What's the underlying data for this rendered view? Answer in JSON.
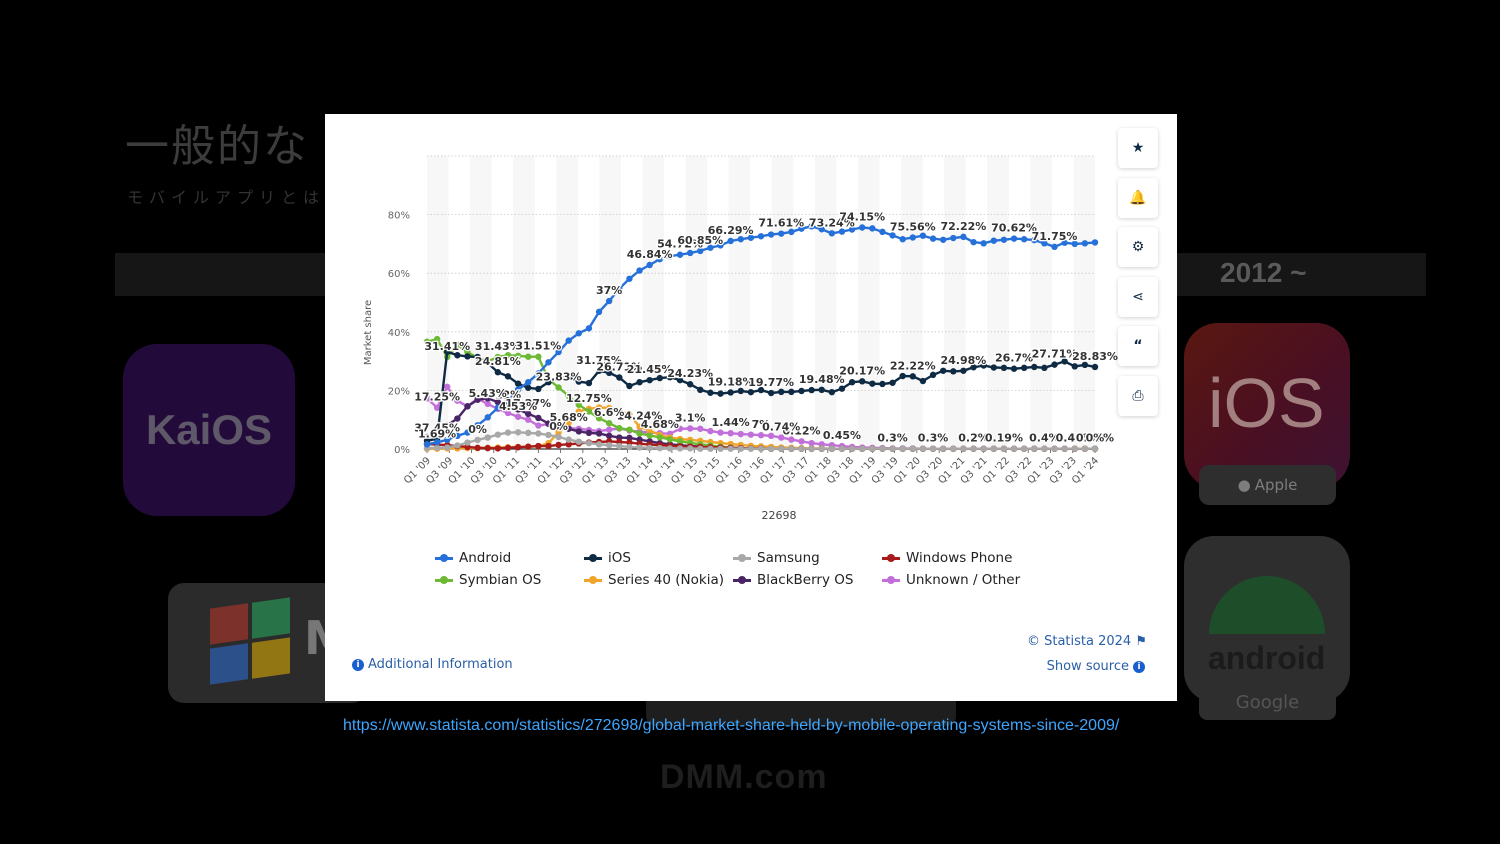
{
  "background": {
    "title": "一般的な",
    "subtitle": "モバイルアプリとは何",
    "year_label": "2012 ~",
    "kaios_logo": "KaiOS",
    "windows_text": "M",
    "ios_logo": "iOS",
    "apple_label": "Apple",
    "android_logo": "android",
    "google_label": "Google",
    "watermark": "DMM.com"
  },
  "source_url": "https://www.statista.com/statistics/272698/global-market-share-held-by-mobile-operating-systems-since-2009/",
  "modal": {
    "tools": [
      "star-icon",
      "bell-icon",
      "gear-icon",
      "share-icon",
      "quote-icon",
      "print-icon"
    ],
    "copyright": "© Statista 2024",
    "show_source": "Show source",
    "additional_info": "Additional Information"
  },
  "chart_data": {
    "type": "line",
    "xlabel": "22698",
    "ylabel": "Market share",
    "ylim": [
      0,
      100
    ],
    "yticks": [
      "0%",
      "20%",
      "40%",
      "60%",
      "80%"
    ],
    "x_tick_labels": [
      "Q1 '09",
      "Q3 '09",
      "Q1 '10",
      "Q3 '10",
      "Q1 '11",
      "Q3 '11",
      "Q1 '12",
      "Q3 '12",
      "Q1 '13",
      "Q3 '13",
      "Q1 '14",
      "Q3 '14",
      "Q1 '15",
      "Q3 '15",
      "Q1 '16",
      "Q3 '16",
      "Q1 '17",
      "Q3 '17",
      "Q1 '18",
      "Q3 '18",
      "Q1 '19",
      "Q3 '19",
      "Q1 '20",
      "Q3 '20",
      "Q1 '21",
      "Q3 '21",
      "Q1 '22",
      "Q3 '22",
      "Q1 '23",
      "Q3 '23",
      "Q1 '24"
    ],
    "legend_position": "bottom",
    "series": [
      {
        "name": "Android",
        "color": "#2670d9",
        "values": [
          1.6,
          2.3,
          3.1,
          4.5,
          5.6,
          8.1,
          10.8,
          14.1,
          16.5,
          20.3,
          22.8,
          25.8,
          29.6,
          33.1,
          37.0,
          39.5,
          41.2,
          46.8,
          50.5,
          54.7,
          58.1,
          60.9,
          62.8,
          64.8,
          65.8,
          66.3,
          66.9,
          67.6,
          68.7,
          69.5,
          71.0,
          71.6,
          72.1,
          72.6,
          73.2,
          73.5,
          74.1,
          75.2,
          76.0,
          75.0,
          73.6,
          74.2,
          74.9,
          75.6,
          75.3,
          74.1,
          72.9,
          71.6,
          72.2,
          72.8,
          71.8,
          71.4,
          72.0,
          72.4,
          70.6,
          70.2,
          71.1,
          71.4,
          71.8,
          71.6,
          71.3,
          70.2,
          69.0,
          70.4,
          70.0,
          70.2,
          70.5
        ]
      },
      {
        "name": "iOS",
        "color": "#0f2a43",
        "values": [
          2.8,
          3.5,
          33.2,
          32.0,
          31.6,
          31.4,
          29.4,
          26.2,
          24.8,
          22.3,
          20.9,
          20.5,
          22.8,
          24.1,
          24.5,
          23.0,
          22.5,
          26.7,
          26.0,
          24.4,
          21.5,
          22.8,
          23.5,
          24.2,
          24.5,
          23.5,
          22.1,
          20.2,
          19.2,
          18.9,
          19.3,
          19.8,
          19.4,
          20.1,
          19.1,
          19.5,
          19.5,
          19.8,
          20.1,
          20.2,
          19.4,
          20.6,
          22.8,
          23.1,
          22.3,
          22.2,
          22.6,
          24.9,
          24.8,
          23.2,
          25.3,
          26.7,
          26.5,
          26.7,
          27.9,
          28.5,
          27.8,
          27.7,
          27.4,
          27.7,
          28.0,
          27.7,
          28.8,
          29.9,
          28.2,
          28.7,
          28.0
        ]
      },
      {
        "name": "Samsung",
        "color": "#a8a8a8",
        "values": [
          0.3,
          0.4,
          0.5,
          1.2,
          2.2,
          3.1,
          3.9,
          4.9,
          5.6,
          5.7,
          5.5,
          5.3,
          4.8,
          4.1,
          3.2,
          2.5,
          2.0,
          1.6,
          1.3,
          1.0,
          0.7,
          0.5,
          0.4,
          0.3,
          0.2,
          0.2,
          0.2,
          0.1,
          0.1,
          0.1,
          0.1,
          0.1,
          0.1,
          0.1,
          0.1,
          0.1,
          0.1,
          0.1,
          0.1,
          0.1,
          0.1,
          0.1,
          0.1,
          0.1,
          0.1,
          0.1,
          0.1,
          0.1,
          0.1,
          0.1,
          0.1,
          0.1,
          0.1,
          0.1,
          0.1,
          0.1,
          0.1,
          0.1,
          0.1,
          0.1,
          0.1,
          0.1,
          0.1,
          0.1,
          0.1,
          0.1,
          0.1
        ]
      },
      {
        "name": "Windows Phone",
        "color": "#a81b1b",
        "values": [
          1.7,
          1.5,
          1.3,
          1.0,
          0.7,
          0.4,
          0.3,
          0.2,
          0.4,
          0.6,
          0.8,
          1.0,
          1.0,
          1.4,
          1.6,
          1.9,
          2.2,
          2.4,
          2.6,
          2.4,
          2.2,
          1.8,
          1.5,
          1.3,
          1.1,
          0.9,
          0.8,
          0.7,
          0.6,
          0.5,
          0.4,
          0.3,
          0.2,
          0.2,
          0.1,
          0.1,
          0.1,
          0.1,
          0.1,
          0.1,
          0.1,
          0.1,
          0.1,
          0.1,
          0.1,
          0.1,
          0.1,
          0.1,
          0.1,
          0.1,
          0.1,
          0.1,
          0.1,
          0.1,
          0.1,
          0.1,
          0.1,
          0.1,
          0.1,
          0.1,
          0.1,
          0.1,
          0.1,
          0.1,
          0.1,
          0.1,
          0.1
        ]
      },
      {
        "name": "Symbian OS",
        "color": "#6cb933",
        "values": [
          36.6,
          37.5,
          31.4,
          35.5,
          33.0,
          31.2,
          29.9,
          31.4,
          32.0,
          31.8,
          31.5,
          31.5,
          23.8,
          21.0,
          18.1,
          15.1,
          12.8,
          10.5,
          8.8,
          7.1,
          6.6,
          5.3,
          4.6,
          4.0,
          3.3,
          2.6,
          2.1,
          1.6,
          1.2,
          0.8,
          0.5,
          0.3,
          0.2,
          0.1,
          0.1,
          0.1,
          0.1,
          0.1,
          0.1,
          0.1,
          0.1,
          0.1,
          0.1,
          0.1,
          0.1,
          0.1,
          0.1,
          0.1,
          0.1,
          0.1,
          0.1,
          0.1,
          0.1,
          0.1,
          0.1,
          0.1,
          0.1,
          0.1,
          0.1,
          0.1,
          0.1,
          0.1,
          0.1,
          0.1,
          0.1,
          0.1,
          0.1
        ]
      },
      {
        "name": "Series 40 (Nokia)",
        "color": "#f0a42c",
        "values": [
          0.1,
          0.1,
          0.2,
          0.2,
          0.3,
          0.3,
          0.4,
          0.5,
          0.6,
          0.7,
          0.8,
          1.0,
          2.0,
          5.7,
          9.0,
          12.8,
          13.7,
          14.2,
          14.0,
          13.0,
          11.8,
          7.6,
          6.2,
          4.8,
          3.9,
          3.4,
          3.1,
          2.8,
          2.4,
          2.0,
          1.7,
          1.4,
          1.1,
          0.9,
          0.7,
          0.5,
          0.4,
          0.3,
          0.2,
          0.2,
          0.1,
          0.1,
          0.1,
          0.1,
          0.1,
          0.1,
          0.1,
          0.1,
          0.1,
          0.1,
          0.1,
          0.1,
          0.1,
          0.1,
          0.1,
          0.1,
          0.1,
          0.1,
          0.1,
          0.1,
          0.1,
          0.1,
          0.1,
          0.1,
          0.1,
          0.1,
          0.1
        ]
      },
      {
        "name": "BlackBerry OS",
        "color": "#4a2566",
        "values": [
          4.1,
          5.5,
          8.1,
          10.4,
          14.6,
          16.8,
          17.3,
          16.0,
          14.8,
          13.5,
          12.0,
          10.6,
          8.7,
          7.8,
          6.9,
          6.0,
          5.5,
          5.3,
          4.5,
          3.9,
          3.8,
          3.2,
          2.6,
          2.0,
          1.6,
          1.3,
          1.0,
          0.9,
          0.7,
          0.5,
          0.4,
          0.3,
          0.2,
          0.2,
          0.1,
          0.1,
          0.1,
          0.1,
          0.1,
          0.1,
          0.1,
          0.1,
          0.1,
          0.1,
          0.1,
          0.1,
          0.1,
          0.1,
          0.1,
          0.1,
          0.1,
          0.1,
          0.1,
          0.1,
          0.1,
          0.1,
          0.1,
          0.1,
          0.1,
          0.1,
          0.1,
          0.1,
          0.1,
          0.1,
          0.1,
          0.1,
          0.1
        ]
      },
      {
        "name": "Unknown / Other",
        "color": "#c26fd9",
        "values": [
          17.3,
          14.1,
          21.2,
          16.5,
          14.5,
          17.2,
          15.4,
          13.7,
          12.3,
          11.0,
          10.0,
          8.0,
          8.5,
          7.8,
          7.1,
          6.9,
          6.5,
          6.1,
          6.6,
          7.0,
          6.3,
          5.9,
          5.6,
          5.4,
          5.2,
          6.9,
          7.0,
          6.9,
          6.1,
          5.6,
          5.4,
          5.1,
          4.9,
          4.7,
          4.5,
          3.9,
          3.2,
          2.6,
          2.0,
          1.6,
          1.3,
          1.0,
          0.7,
          0.5,
          0.4,
          0.3,
          0.2,
          0.2,
          0.2,
          0.1,
          0.1,
          0.1,
          0.1,
          0.1,
          0.1,
          0.1,
          0.1,
          0.1,
          0.1,
          0.1,
          0.1,
          0.1,
          0.1,
          0.1,
          0.1,
          0.1,
          0.1
        ]
      }
    ],
    "annotations": [
      {
        "text": "37.45%",
        "series": 1,
        "i": 1
      },
      {
        "text": "31.41%",
        "series": 4,
        "i": 2
      },
      {
        "text": "31.43%",
        "series": 4,
        "i": 7
      },
      {
        "text": "31.51%",
        "series": 4,
        "i": 11
      },
      {
        "text": "31.75%",
        "series": 1,
        "i": 17
      },
      {
        "text": "37%",
        "series": 0,
        "i": 18
      },
      {
        "text": "46.84%",
        "series": 0,
        "i": 22
      },
      {
        "text": "54.72%",
        "series": 0,
        "i": 25
      },
      {
        "text": "60.85%",
        "series": 0,
        "i": 27
      },
      {
        "text": "66.29%",
        "series": 0,
        "i": 30
      },
      {
        "text": "71.61%",
        "series": 0,
        "i": 35
      },
      {
        "text": "73.24%",
        "series": 0,
        "i": 40
      },
      {
        "text": "74.15%",
        "series": 0,
        "i": 43
      },
      {
        "text": "75.56%",
        "series": 0,
        "i": 48
      },
      {
        "text": "72.22%",
        "series": 0,
        "i": 53
      },
      {
        "text": "70.62%",
        "series": 0,
        "i": 58
      },
      {
        "text": "71.75%",
        "series": 0,
        "i": 62
      },
      {
        "text": "24.81%",
        "series": 1,
        "i": 7
      },
      {
        "text": "23.83%",
        "series": 4,
        "i": 13
      },
      {
        "text": "26.71%",
        "series": 1,
        "i": 19
      },
      {
        "text": "21.45%",
        "series": 1,
        "i": 22
      },
      {
        "text": "24.23%",
        "series": 1,
        "i": 26
      },
      {
        "text": "19.18%",
        "series": 1,
        "i": 30
      },
      {
        "text": "19.77%",
        "series": 1,
        "i": 34
      },
      {
        "text": "19.48%",
        "series": 1,
        "i": 39
      },
      {
        "text": "20.17%",
        "series": 1,
        "i": 43
      },
      {
        "text": "22.22%",
        "series": 1,
        "i": 48
      },
      {
        "text": "24.98%",
        "series": 1,
        "i": 53
      },
      {
        "text": "26.7%",
        "series": 1,
        "i": 58
      },
      {
        "text": "27.71%",
        "series": 1,
        "i": 62
      },
      {
        "text": "28.83%",
        "series": 1,
        "i": 66
      },
      {
        "text": "17.25%",
        "series": 7,
        "i": 1
      },
      {
        "text": "12%",
        "series": 6,
        "i": 8
      },
      {
        "text": "17.27%",
        "series": 6,
        "i": 10
      },
      {
        "text": "12.75%",
        "series": 5,
        "i": 16
      },
      {
        "text": "14.24%",
        "series": 5,
        "i": 21
      },
      {
        "text": "5.43%",
        "series": 7,
        "i": 6
      },
      {
        "text": "4.53%",
        "series": 7,
        "i": 9
      },
      {
        "text": "5.68%",
        "series": 7,
        "i": 14
      },
      {
        "text": "6.6%",
        "series": 4,
        "i": 18
      },
      {
        "text": "4.68%",
        "series": 5,
        "i": 23
      },
      {
        "text": "3.1%",
        "series": 7,
        "i": 26
      },
      {
        "text": "1.44%",
        "series": 7,
        "i": 30
      },
      {
        "text": "7%",
        "series": 7,
        "i": 33
      },
      {
        "text": "6.12%",
        "series": 7,
        "i": 37
      },
      {
        "text": "1.69%",
        "series": 3,
        "i": 1
      },
      {
        "text": "0%",
        "series": 2,
        "i": 5
      },
      {
        "text": "0%",
        "series": 2,
        "i": 13
      },
      {
        "text": "0.74%",
        "series": 7,
        "i": 35
      },
      {
        "text": "0.45%",
        "series": 7,
        "i": 41
      },
      {
        "text": "0.3%",
        "series": 7,
        "i": 46
      },
      {
        "text": "0.3%",
        "series": 7,
        "i": 50
      },
      {
        "text": "0.2%",
        "series": 7,
        "i": 54
      },
      {
        "text": "0.19%",
        "series": 7,
        "i": 57
      },
      {
        "text": "0.4%",
        "series": 7,
        "i": 61
      },
      {
        "text": "0.44%",
        "series": 7,
        "i": 64
      },
      {
        "text": "0.35%",
        "series": 7,
        "i": 66
      },
      {
        "text": "0%",
        "series": 7,
        "i": 66
      }
    ]
  }
}
